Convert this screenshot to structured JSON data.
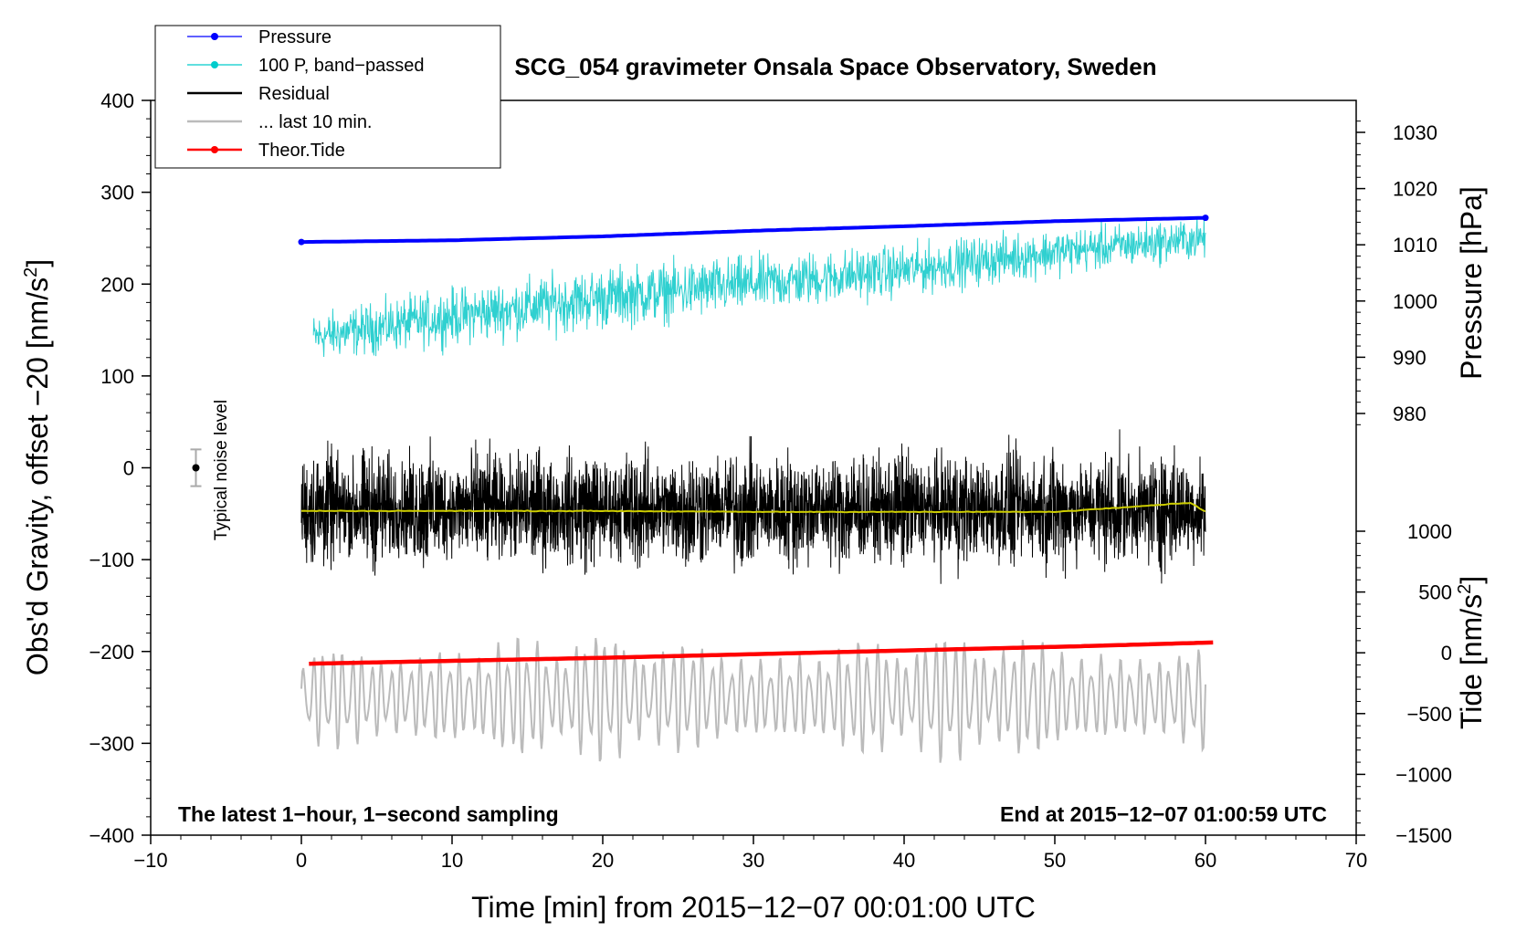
{
  "chart_data": {
    "type": "line",
    "title": "SCG_054 gravimeter Onsala Space Observatory, Sweden",
    "xlabel": "Time [min] from 2015−12−07 00:01:00 UTC",
    "ylabel_left_main": "Obs'd Gravity, offset −20 [nm/s",
    "ylabel_left_sup": "2",
    "ylabel_left_close": "]",
    "ylabel_right_pressure": "Pressure [hPa]",
    "ylabel_right_tide_main": "Tide [nm/s",
    "ylabel_right_tide_sup": "2",
    "ylabel_right_tide_close": "]",
    "xlim": [
      -10,
      70
    ],
    "ylim": [
      -400,
      400
    ],
    "pressure_lim": [
      975,
      1032
    ],
    "tide_lim": [
      -1500,
      1000
    ],
    "x_ticks": [
      "−10",
      "0",
      "10",
      "20",
      "30",
      "40",
      "50",
      "60",
      "70"
    ],
    "x_tick_values": [
      -10,
      0,
      10,
      20,
      30,
      40,
      50,
      60,
      70
    ],
    "y_ticks": [
      "−400",
      "−300",
      "−200",
      "−100",
      "0",
      "100",
      "200",
      "300",
      "400"
    ],
    "y_tick_values": [
      -400,
      -300,
      -200,
      -100,
      0,
      100,
      200,
      300,
      400
    ],
    "pressure_ticks": [
      "980",
      "990",
      "1000",
      "1010",
      "1020",
      "1030"
    ],
    "pressure_tick_values": [
      980,
      990,
      1000,
      1010,
      1020,
      1030
    ],
    "tide_ticks": [
      "−1500",
      "−1000",
      "−500",
      "0",
      "500",
      "1000"
    ],
    "tide_tick_values": [
      -1500,
      -1000,
      -500,
      0,
      500,
      1000
    ],
    "annotations": {
      "bottom_left": "The latest 1−hour, 1−second sampling",
      "bottom_right": "End at 2015−12−07 01:00:59 UTC",
      "noise_label": "Typical noise level"
    },
    "noise_bar": {
      "x": -7,
      "center": 0,
      "half_range": 20
    },
    "legend": [
      {
        "label": "Pressure",
        "color": "#0000ff",
        "marker": true
      },
      {
        "label": "100 P, band−passed",
        "color": "#00cccc",
        "marker": true
      },
      {
        "label": "Residual",
        "color": "#000000",
        "marker": false
      },
      {
        "label": "... last 10 min.",
        "color": "#bbbbbb",
        "marker": false
      },
      {
        "label": "Theor.Tide",
        "color": "#ff0000",
        "marker": true
      }
    ],
    "series": [
      {
        "name": "Pressure",
        "axis": "pressure",
        "color": "#0000ff",
        "x": [
          0,
          10,
          20,
          30,
          40,
          50,
          60
        ],
        "values": [
          1010.5,
          1010.8,
          1011.5,
          1012.5,
          1013.3,
          1014.2,
          1014.8
        ]
      },
      {
        "name": "100 P, band−passed",
        "axis": "left",
        "color": "#2fd0d0",
        "x": [
          0,
          10,
          20,
          30,
          40,
          50,
          60
        ],
        "center": [
          140,
          165,
          185,
          200,
          215,
          235,
          250
        ],
        "amplitude": [
          45,
          55,
          60,
          55,
          50,
          45,
          40
        ]
      },
      {
        "name": "Residual",
        "axis": "left",
        "color": "#000000",
        "x_range": [
          0,
          60
        ],
        "center": -45,
        "amplitude": 75
      },
      {
        "name": "Residual (smoothed)",
        "axis": "left",
        "color": "#cccc00",
        "x": [
          0,
          10,
          20,
          30,
          40,
          50,
          59,
          60
        ],
        "values": [
          -47,
          -47,
          -47,
          -48,
          -48,
          -48,
          -38,
          -48
        ]
      },
      {
        "name": "... last 10 min.",
        "axis": "left",
        "color": "#bbbbbb",
        "x_range": [
          0,
          60
        ],
        "center": -250,
        "amplitude": 55
      },
      {
        "name": "Theor.Tide",
        "axis": "tide",
        "color": "#ff0000",
        "x": [
          0,
          10,
          20,
          30,
          40,
          50,
          60
        ],
        "values": [
          -90,
          -65,
          -40,
          -10,
          20,
          50,
          85
        ]
      }
    ]
  }
}
